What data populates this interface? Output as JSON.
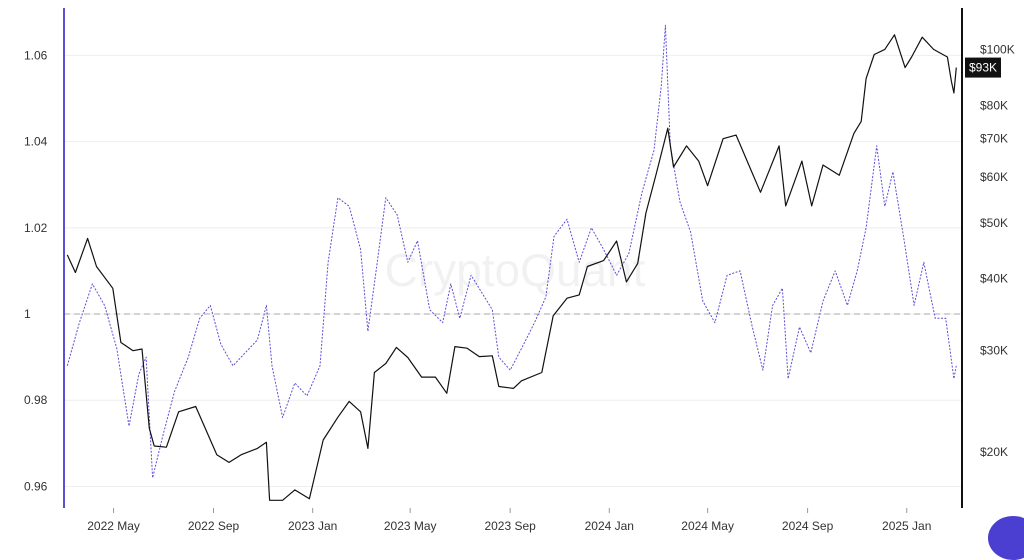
{
  "watermark": "CryptoQuant",
  "colors": {
    "ratio_line": "#5b4fd6",
    "price_line": "#111111",
    "left_axis": "#5b4fd6",
    "right_axis": "#111111",
    "reference_line": "#bbbbbb",
    "grid": "#eeeeee"
  },
  "chart_data": {
    "type": "line",
    "grid": true,
    "x_range": [
      "2022-03-01",
      "2025-03-10"
    ],
    "x_ticks": [
      "2022 May",
      "2022 Sep",
      "2023 Jan",
      "2023 May",
      "2023 Sep",
      "2024 Jan",
      "2024 May",
      "2024 Sep",
      "2025 Jan"
    ],
    "left_axis": {
      "ylim": [
        0.955,
        1.071
      ],
      "ticks": [
        0.96,
        0.98,
        1,
        1.02,
        1.04,
        1.06
      ],
      "tick_labels": [
        "0.96",
        "0.98",
        "1",
        "1.02",
        "1.04",
        "1.06"
      ]
    },
    "right_axis": {
      "scale": "log",
      "ylim": [
        16000,
        118000
      ],
      "ticks": [
        20000,
        30000,
        40000,
        50000,
        60000,
        70000,
        80000,
        100000
      ],
      "tick_labels": [
        "$20K",
        "$30K",
        "$40K",
        "$50K",
        "$60K",
        "$70K",
        "$80K",
        "$100K"
      ],
      "current_value_label": "$93K",
      "current_value": 93000
    },
    "reference_line": 1,
    "series": [
      {
        "axis": "left",
        "style": "dashed",
        "points": [
          [
            "2022-03-05",
            0.988
          ],
          [
            "2022-03-20",
            0.998
          ],
          [
            "2022-04-05",
            1.007
          ],
          [
            "2022-04-20",
            1.002
          ],
          [
            "2022-05-05",
            0.992
          ],
          [
            "2022-05-20",
            0.974
          ],
          [
            "2022-06-01",
            0.986
          ],
          [
            "2022-06-10",
            0.99
          ],
          [
            "2022-06-18",
            0.962
          ],
          [
            "2022-07-01",
            0.972
          ],
          [
            "2022-07-15",
            0.982
          ],
          [
            "2022-08-01",
            0.99
          ],
          [
            "2022-08-15",
            0.999
          ],
          [
            "2022-08-28",
            1.002
          ],
          [
            "2022-09-10",
            0.993
          ],
          [
            "2022-09-25",
            0.988
          ],
          [
            "2022-10-10",
            0.991
          ],
          [
            "2022-10-25",
            0.994
          ],
          [
            "2022-11-05",
            1.002
          ],
          [
            "2022-11-12",
            0.988
          ],
          [
            "2022-11-25",
            0.976
          ],
          [
            "2022-12-10",
            0.984
          ],
          [
            "2022-12-25",
            0.981
          ],
          [
            "2023-01-10",
            0.988
          ],
          [
            "2023-01-20",
            1.012
          ],
          [
            "2023-02-01",
            1.027
          ],
          [
            "2023-02-15",
            1.025
          ],
          [
            "2023-03-01",
            1.015
          ],
          [
            "2023-03-10",
            0.996
          ],
          [
            "2023-03-20",
            1.01
          ],
          [
            "2023-04-01",
            1.027
          ],
          [
            "2023-04-15",
            1.023
          ],
          [
            "2023-04-28",
            1.012
          ],
          [
            "2023-05-10",
            1.017
          ],
          [
            "2023-05-25",
            1.001
          ],
          [
            "2023-06-10",
            0.998
          ],
          [
            "2023-06-20",
            1.007
          ],
          [
            "2023-07-01",
            0.999
          ],
          [
            "2023-07-15",
            1.009
          ],
          [
            "2023-07-28",
            1.005
          ],
          [
            "2023-08-10",
            1.001
          ],
          [
            "2023-08-18",
            0.99
          ],
          [
            "2023-09-01",
            0.987
          ],
          [
            "2023-09-15",
            0.992
          ],
          [
            "2023-10-01",
            0.998
          ],
          [
            "2023-10-15",
            1.004
          ],
          [
            "2023-10-25",
            1.018
          ],
          [
            "2023-11-10",
            1.022
          ],
          [
            "2023-11-25",
            1.012
          ],
          [
            "2023-12-10",
            1.02
          ],
          [
            "2023-12-25",
            1.015
          ],
          [
            "2024-01-10",
            1.009
          ],
          [
            "2024-01-25",
            1.014
          ],
          [
            "2024-02-10",
            1.028
          ],
          [
            "2024-02-25",
            1.038
          ],
          [
            "2024-03-05",
            1.053
          ],
          [
            "2024-03-10",
            1.067
          ],
          [
            "2024-03-16",
            1.039
          ],
          [
            "2024-03-28",
            1.026
          ],
          [
            "2024-04-10",
            1.019
          ],
          [
            "2024-04-25",
            1.003
          ],
          [
            "2024-05-10",
            0.998
          ],
          [
            "2024-05-25",
            1.009
          ],
          [
            "2024-06-10",
            1.01
          ],
          [
            "2024-06-25",
            0.997
          ],
          [
            "2024-07-08",
            0.987
          ],
          [
            "2024-07-20",
            1.002
          ],
          [
            "2024-08-01",
            1.006
          ],
          [
            "2024-08-08",
            0.985
          ],
          [
            "2024-08-22",
            0.997
          ],
          [
            "2024-09-05",
            0.991
          ],
          [
            "2024-09-20",
            1.003
          ],
          [
            "2024-10-05",
            1.01
          ],
          [
            "2024-10-20",
            1.002
          ],
          [
            "2024-11-01",
            1.01
          ],
          [
            "2024-11-12",
            1.02
          ],
          [
            "2024-11-25",
            1.039
          ],
          [
            "2024-12-05",
            1.025
          ],
          [
            "2024-12-15",
            1.033
          ],
          [
            "2024-12-28",
            1.018
          ],
          [
            "2025-01-10",
            1.002
          ],
          [
            "2025-01-22",
            1.012
          ],
          [
            "2025-02-05",
            0.999
          ],
          [
            "2025-02-18",
            0.999
          ],
          [
            "2025-02-28",
            0.985
          ],
          [
            "2025-03-03",
            0.988
          ]
        ]
      },
      {
        "axis": "right",
        "style": "solid",
        "points": [
          [
            "2022-03-05",
            44000
          ],
          [
            "2022-03-15",
            41000
          ],
          [
            "2022-03-30",
            47000
          ],
          [
            "2022-04-10",
            42000
          ],
          [
            "2022-04-30",
            38500
          ],
          [
            "2022-05-10",
            31000
          ],
          [
            "2022-05-25",
            30000
          ],
          [
            "2022-06-05",
            30200
          ],
          [
            "2022-06-14",
            22000
          ],
          [
            "2022-06-20",
            20500
          ],
          [
            "2022-07-05",
            20400
          ],
          [
            "2022-07-20",
            23500
          ],
          [
            "2022-08-10",
            24000
          ],
          [
            "2022-08-25",
            21500
          ],
          [
            "2022-09-05",
            19800
          ],
          [
            "2022-09-20",
            19200
          ],
          [
            "2022-10-05",
            19800
          ],
          [
            "2022-10-25",
            20300
          ],
          [
            "2022-11-05",
            20800
          ],
          [
            "2022-11-09",
            16500
          ],
          [
            "2022-11-25",
            16500
          ],
          [
            "2022-12-10",
            17200
          ],
          [
            "2022-12-28",
            16600
          ],
          [
            "2023-01-14",
            21000
          ],
          [
            "2023-02-01",
            23000
          ],
          [
            "2023-02-15",
            24500
          ],
          [
            "2023-03-01",
            23500
          ],
          [
            "2023-03-10",
            20300
          ],
          [
            "2023-03-18",
            27500
          ],
          [
            "2023-04-01",
            28500
          ],
          [
            "2023-04-14",
            30400
          ],
          [
            "2023-04-28",
            29200
          ],
          [
            "2023-05-15",
            27000
          ],
          [
            "2023-06-01",
            27000
          ],
          [
            "2023-06-15",
            25300
          ],
          [
            "2023-06-25",
            30500
          ],
          [
            "2023-07-10",
            30300
          ],
          [
            "2023-07-25",
            29300
          ],
          [
            "2023-08-10",
            29400
          ],
          [
            "2023-08-18",
            26000
          ],
          [
            "2023-09-05",
            25800
          ],
          [
            "2023-09-15",
            26600
          ],
          [
            "2023-10-10",
            27500
          ],
          [
            "2023-10-24",
            34500
          ],
          [
            "2023-11-10",
            37000
          ],
          [
            "2023-11-25",
            37500
          ],
          [
            "2023-12-05",
            42000
          ],
          [
            "2023-12-25",
            43000
          ],
          [
            "2024-01-10",
            46500
          ],
          [
            "2024-01-22",
            39500
          ],
          [
            "2024-02-05",
            42500
          ],
          [
            "2024-02-15",
            52000
          ],
          [
            "2024-02-28",
            61000
          ],
          [
            "2024-03-13",
            73000
          ],
          [
            "2024-03-20",
            62500
          ],
          [
            "2024-04-05",
            68000
          ],
          [
            "2024-04-20",
            64000
          ],
          [
            "2024-05-01",
            58000
          ],
          [
            "2024-05-20",
            70000
          ],
          [
            "2024-06-05",
            71000
          ],
          [
            "2024-06-25",
            61000
          ],
          [
            "2024-07-05",
            56500
          ],
          [
            "2024-07-28",
            68000
          ],
          [
            "2024-08-05",
            53500
          ],
          [
            "2024-08-25",
            64000
          ],
          [
            "2024-09-06",
            53500
          ],
          [
            "2024-09-20",
            63000
          ],
          [
            "2024-10-10",
            60500
          ],
          [
            "2024-10-28",
            71500
          ],
          [
            "2024-11-06",
            75000
          ],
          [
            "2024-11-12",
            89000
          ],
          [
            "2024-11-22",
            98000
          ],
          [
            "2024-12-05",
            100000
          ],
          [
            "2024-12-17",
            106000
          ],
          [
            "2024-12-30",
            93000
          ],
          [
            "2025-01-07",
            97000
          ],
          [
            "2025-01-20",
            105000
          ],
          [
            "2025-02-03",
            100000
          ],
          [
            "2025-02-20",
            97000
          ],
          [
            "2025-02-25",
            88000
          ],
          [
            "2025-02-28",
            84000
          ],
          [
            "2025-03-03",
            93000
          ]
        ]
      }
    ]
  }
}
